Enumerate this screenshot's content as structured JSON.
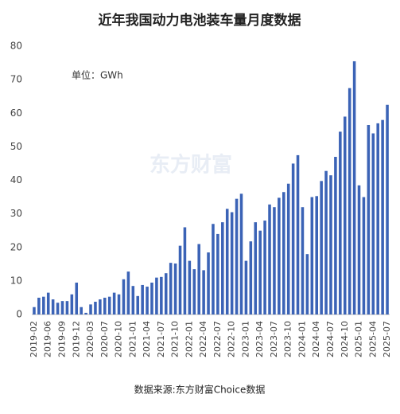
{
  "chart_data": {
    "type": "bar",
    "title": "近年我国动力电池装车量月度数据",
    "annotation": "单位：GWh",
    "watermark": "东方财富",
    "source": "数据来源:东方财富Choice数据",
    "color": "#3b63b6",
    "categories": [
      "2019-02",
      null,
      null,
      "2019-06",
      null,
      null,
      "2019-09",
      null,
      null,
      "2019-12",
      null,
      null,
      "2020-03",
      null,
      null,
      "2020-07",
      null,
      null,
      "2020-10",
      null,
      null,
      "2021-01",
      null,
      null,
      "2021-04",
      null,
      null,
      "2021-07",
      null,
      null,
      "2021-10",
      null,
      null,
      "2022-01",
      null,
      null,
      "2022-04",
      null,
      null,
      "2022-07",
      null,
      null,
      "2022-10",
      null,
      null,
      "2023-01",
      null,
      null,
      "2023-04",
      null,
      null,
      "2023-07",
      null,
      null,
      "2023-10",
      null,
      null,
      "2024-01",
      null,
      null,
      "2024-04",
      null,
      null,
      "2024-07",
      null,
      null,
      "2024-10",
      null,
      null,
      "2025-01",
      null,
      null,
      "2025-04",
      null,
      null,
      "2025-07"
    ],
    "values": [
      2.2,
      5,
      5.3,
      6.5,
      4.5,
      3.5,
      4,
      4,
      6,
      9.5,
      2.2,
      0.5,
      3,
      3.8,
      4.5,
      5,
      5.3,
      6.5,
      6,
      10.5,
      12.8,
      8.5,
      5.5,
      8.8,
      8.3,
      9.5,
      11,
      11.2,
      12.3,
      15.4,
      15.2,
      20.5,
      26,
      16,
      13.5,
      21,
      13.2,
      18.5,
      27,
      24,
      27.5,
      31.5,
      30.5,
      34.5,
      36,
      16,
      21.8,
      27.5,
      25,
      28,
      32.8,
      32,
      34.8,
      36.5,
      39,
      45,
      47.5,
      32,
      18,
      35,
      35.3,
      39.8,
      42.8,
      41.5,
      47,
      54.5,
      59,
      67.5,
      75.5,
      38.5,
      35,
      56.5,
      54,
      57,
      58,
      62.5
    ],
    "ylim": [
      0,
      80
    ],
    "yticks": [
      0,
      10,
      20,
      30,
      40,
      50,
      60,
      70,
      80
    ],
    "grid": false
  }
}
